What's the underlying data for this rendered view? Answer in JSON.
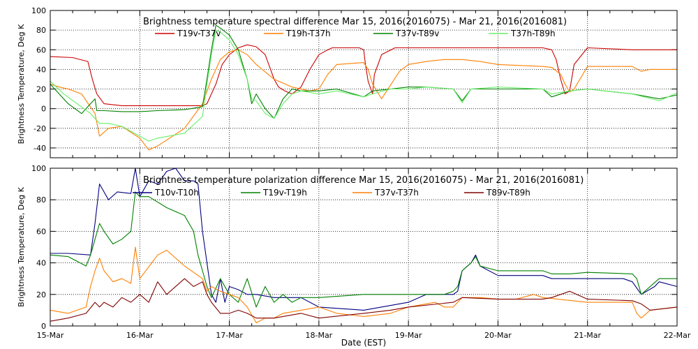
{
  "chart_data": [
    {
      "type": "line",
      "title": "Brightness temperature spectral difference     Mar 15, 2016(2016075) - Mar 21, 2016(2016081)",
      "ylabel": "Brightness Temperature, Deg K",
      "xlabel": "",
      "xlim": [
        0,
        7
      ],
      "ylim": [
        -50,
        100
      ],
      "yticks": [
        -40,
        -20,
        0,
        20,
        40,
        60,
        80,
        100
      ],
      "grid": true,
      "legend": "top",
      "series": [
        {
          "name": "T19v-T37v",
          "color": "#cc0000",
          "x": [
            0,
            0.25,
            0.42,
            0.47,
            0.52,
            0.6,
            0.8,
            1.0,
            1.2,
            1.5,
            1.7,
            1.75,
            1.85,
            1.92,
            2.0,
            2.1,
            2.2,
            2.3,
            2.4,
            2.5,
            2.55,
            2.62,
            2.7,
            2.8,
            2.9,
            3.0,
            3.1,
            3.15,
            3.3,
            3.45,
            3.5,
            3.52,
            3.55,
            3.6,
            3.62,
            3.7,
            3.85,
            4.0,
            4.2,
            4.5,
            4.8,
            5.0,
            5.2,
            5.5,
            5.6,
            5.65,
            5.7,
            5.75,
            5.8,
            5.85,
            6.0,
            6.5,
            7.0
          ],
          "y": [
            53,
            52,
            48,
            30,
            15,
            5,
            3,
            3,
            3,
            3,
            3,
            5,
            25,
            45,
            55,
            62,
            65,
            63,
            55,
            30,
            22,
            18,
            15,
            22,
            40,
            55,
            60,
            62,
            62,
            62,
            60,
            45,
            28,
            15,
            35,
            55,
            62,
            62,
            62,
            62,
            62,
            62,
            62,
            62,
            60,
            50,
            30,
            15,
            18,
            45,
            62,
            60,
            60
          ]
        },
        {
          "name": "T19h-T37h",
          "color": "#ff7f00",
          "x": [
            0,
            0.1,
            0.2,
            0.35,
            0.5,
            0.55,
            0.65,
            0.8,
            1.0,
            1.1,
            1.2,
            1.5,
            1.7,
            1.8,
            1.9,
            2.0,
            2.1,
            2.2,
            2.3,
            2.5,
            2.7,
            2.9,
            3.0,
            3.1,
            3.2,
            3.5,
            3.55,
            3.6,
            3.7,
            3.9,
            4.0,
            4.2,
            4.4,
            4.6,
            4.8,
            5.0,
            5.5,
            5.6,
            5.7,
            5.75,
            5.8,
            5.85,
            6.0,
            6.5,
            6.6,
            6.7,
            7.0
          ],
          "y": [
            25,
            22,
            20,
            15,
            -5,
            -28,
            -20,
            -18,
            -30,
            -42,
            -38,
            -20,
            5,
            30,
            50,
            58,
            60,
            55,
            45,
            30,
            22,
            18,
            20,
            35,
            45,
            47,
            40,
            25,
            10,
            38,
            45,
            48,
            50,
            50,
            48,
            45,
            43,
            42,
            35,
            25,
            17,
            20,
            43,
            43,
            38,
            40,
            40
          ]
        },
        {
          "name": "T37v-T89v",
          "color": "#008000",
          "x": [
            0,
            0.1,
            0.2,
            0.35,
            0.45,
            0.5,
            0.52,
            0.6,
            0.8,
            1.0,
            1.2,
            1.5,
            1.7,
            1.75,
            1.8,
            1.85,
            1.9,
            2.0,
            2.1,
            2.2,
            2.25,
            2.3,
            2.4,
            2.5,
            2.6,
            2.7,
            2.8,
            3.0,
            3.2,
            3.5,
            3.6,
            3.8,
            4.0,
            4.2,
            4.5,
            4.6,
            4.7,
            5.0,
            5.5,
            5.6,
            5.8,
            6.0,
            6.5,
            6.8,
            7.0
          ],
          "y": [
            25,
            15,
            5,
            -5,
            5,
            10,
            -2,
            -2,
            -3,
            -3,
            -2,
            -1,
            2,
            30,
            60,
            85,
            82,
            75,
            60,
            30,
            5,
            15,
            0,
            -10,
            10,
            20,
            18,
            18,
            20,
            12,
            18,
            20,
            22,
            22,
            20,
            8,
            20,
            20,
            20,
            12,
            18,
            20,
            15,
            10,
            14
          ]
        },
        {
          "name": "T37h-T89h",
          "color": "#66ee66",
          "x": [
            0,
            0.15,
            0.3,
            0.45,
            0.5,
            0.55,
            0.65,
            0.8,
            1.0,
            1.1,
            1.2,
            1.5,
            1.7,
            1.75,
            1.8,
            1.85,
            1.9,
            2.0,
            2.1,
            2.2,
            2.25,
            2.3,
            2.4,
            2.5,
            2.6,
            2.7,
            2.8,
            3.0,
            3.2,
            3.5,
            3.6,
            3.8,
            4.0,
            4.2,
            4.5,
            4.6,
            4.7,
            5.0,
            5.5,
            5.6,
            5.8,
            6.0,
            6.5,
            6.8,
            7.0
          ],
          "y": [
            28,
            15,
            5,
            -5,
            -10,
            -15,
            -15,
            -18,
            -28,
            -33,
            -30,
            -25,
            -8,
            25,
            55,
            80,
            78,
            70,
            55,
            30,
            10,
            8,
            -5,
            -10,
            5,
            15,
            18,
            15,
            18,
            12,
            15,
            20,
            20,
            22,
            20,
            6,
            20,
            22,
            20,
            15,
            18,
            20,
            15,
            8,
            16
          ]
        }
      ]
    },
    {
      "type": "line",
      "title": "Brightness temperature polarization difference     Mar 15, 2016(2016075) - Mar 21, 2016(2016081)",
      "ylabel": "Brightness Temperature, Deg K",
      "xlabel": "Date (EST)",
      "xlim": [
        0,
        7
      ],
      "ylim": [
        0,
        100
      ],
      "yticks": [
        0,
        20,
        40,
        60,
        80,
        100
      ],
      "xticks": [
        "15-Mar",
        "16-Mar",
        "17-Mar",
        "18-Mar",
        "19-Mar",
        "20-Mar",
        "21-Mar",
        "22-Mar"
      ],
      "grid": true,
      "legend": "top",
      "series": [
        {
          "name": "T10v-T10h",
          "color": "#000080",
          "x": [
            0,
            0.2,
            0.45,
            0.5,
            0.55,
            0.65,
            0.75,
            0.9,
            0.95,
            1.0,
            1.1,
            1.2,
            1.3,
            1.4,
            1.5,
            1.6,
            1.65,
            1.7,
            1.75,
            1.8,
            1.85,
            1.9,
            1.95,
            2.0,
            2.1,
            2.2,
            2.3,
            2.5,
            2.8,
            3.0,
            3.5,
            4.0,
            4.2,
            4.4,
            4.5,
            4.55,
            4.6,
            4.7,
            4.75,
            4.8,
            5.0,
            5.5,
            5.6,
            5.8,
            6.0,
            6.4,
            6.5,
            6.6,
            6.75,
            6.8,
            7.0
          ],
          "y": [
            46,
            46,
            45,
            65,
            90,
            80,
            85,
            84,
            100,
            82,
            92,
            90,
            98,
            100,
            92,
            92,
            90,
            60,
            40,
            20,
            15,
            30,
            15,
            25,
            23,
            20,
            20,
            18,
            18,
            12,
            10,
            15,
            20,
            20,
            20,
            22,
            35,
            40,
            45,
            38,
            32,
            32,
            30,
            30,
            30,
            30,
            28,
            20,
            25,
            28,
            25
          ]
        },
        {
          "name": "T19v-T19h",
          "color": "#008000",
          "x": [
            0,
            0.2,
            0.4,
            0.45,
            0.5,
            0.55,
            0.6,
            0.7,
            0.8,
            0.9,
            0.95,
            1.0,
            1.1,
            1.3,
            1.5,
            1.6,
            1.65,
            1.7,
            1.75,
            1.8,
            1.9,
            2.0,
            2.1,
            2.2,
            2.3,
            2.4,
            2.5,
            2.6,
            2.7,
            2.8,
            3.0,
            3.5,
            3.8,
            4.0,
            4.2,
            4.4,
            4.5,
            4.55,
            4.6,
            4.7,
            4.75,
            4.8,
            5.0,
            5.5,
            5.6,
            5.8,
            6.0,
            6.5,
            6.55,
            6.6,
            6.8,
            7.0
          ],
          "y": [
            45,
            44,
            38,
            45,
            55,
            65,
            60,
            52,
            55,
            60,
            85,
            82,
            82,
            75,
            70,
            60,
            45,
            35,
            25,
            18,
            30,
            20,
            15,
            30,
            12,
            25,
            15,
            20,
            15,
            18,
            18,
            20,
            20,
            20,
            20,
            20,
            22,
            25,
            35,
            40,
            44,
            38,
            35,
            35,
            33,
            33,
            34,
            33,
            30,
            20,
            30,
            30
          ]
        },
        {
          "name": "T37v-T37h",
          "color": "#ff7f00",
          "x": [
            0,
            0.2,
            0.4,
            0.45,
            0.5,
            0.55,
            0.6,
            0.7,
            0.8,
            0.9,
            0.95,
            1.0,
            1.2,
            1.3,
            1.5,
            1.7,
            1.75,
            1.8,
            1.9,
            2.0,
            2.1,
            2.2,
            2.3,
            2.4,
            2.5,
            2.6,
            2.8,
            3.0,
            3.2,
            3.5,
            3.8,
            4.0,
            4.3,
            4.4,
            4.5,
            4.6,
            4.8,
            5.0,
            5.2,
            5.4,
            5.5,
            6.0,
            6.2,
            6.5,
            6.55,
            6.6,
            6.7,
            7.0
          ],
          "y": [
            10,
            8,
            12,
            25,
            35,
            43,
            35,
            28,
            30,
            27,
            50,
            30,
            45,
            48,
            38,
            30,
            22,
            25,
            22,
            20,
            18,
            12,
            2,
            5,
            5,
            8,
            10,
            12,
            8,
            6,
            8,
            12,
            15,
            12,
            12,
            18,
            18,
            17,
            17,
            20,
            18,
            15,
            15,
            15,
            8,
            5,
            10,
            12
          ]
        },
        {
          "name": "T89v-T89h",
          "color": "#800000",
          "x": [
            0,
            0.2,
            0.4,
            0.5,
            0.55,
            0.6,
            0.7,
            0.8,
            0.9,
            1.0,
            1.1,
            1.2,
            1.3,
            1.5,
            1.6,
            1.7,
            1.75,
            1.8,
            1.9,
            2.0,
            2.1,
            2.2,
            2.3,
            2.5,
            2.8,
            3.0,
            3.5,
            3.8,
            4.0,
            4.5,
            4.6,
            5.0,
            5.5,
            5.6,
            5.8,
            6.0,
            6.5,
            6.6,
            6.7,
            7.0
          ],
          "y": [
            3,
            5,
            8,
            15,
            12,
            15,
            12,
            18,
            15,
            20,
            15,
            28,
            20,
            30,
            25,
            28,
            20,
            15,
            8,
            8,
            10,
            8,
            5,
            5,
            8,
            5,
            8,
            10,
            12,
            15,
            18,
            17,
            17,
            18,
            22,
            17,
            16,
            14,
            10,
            12
          ]
        }
      ]
    }
  ]
}
